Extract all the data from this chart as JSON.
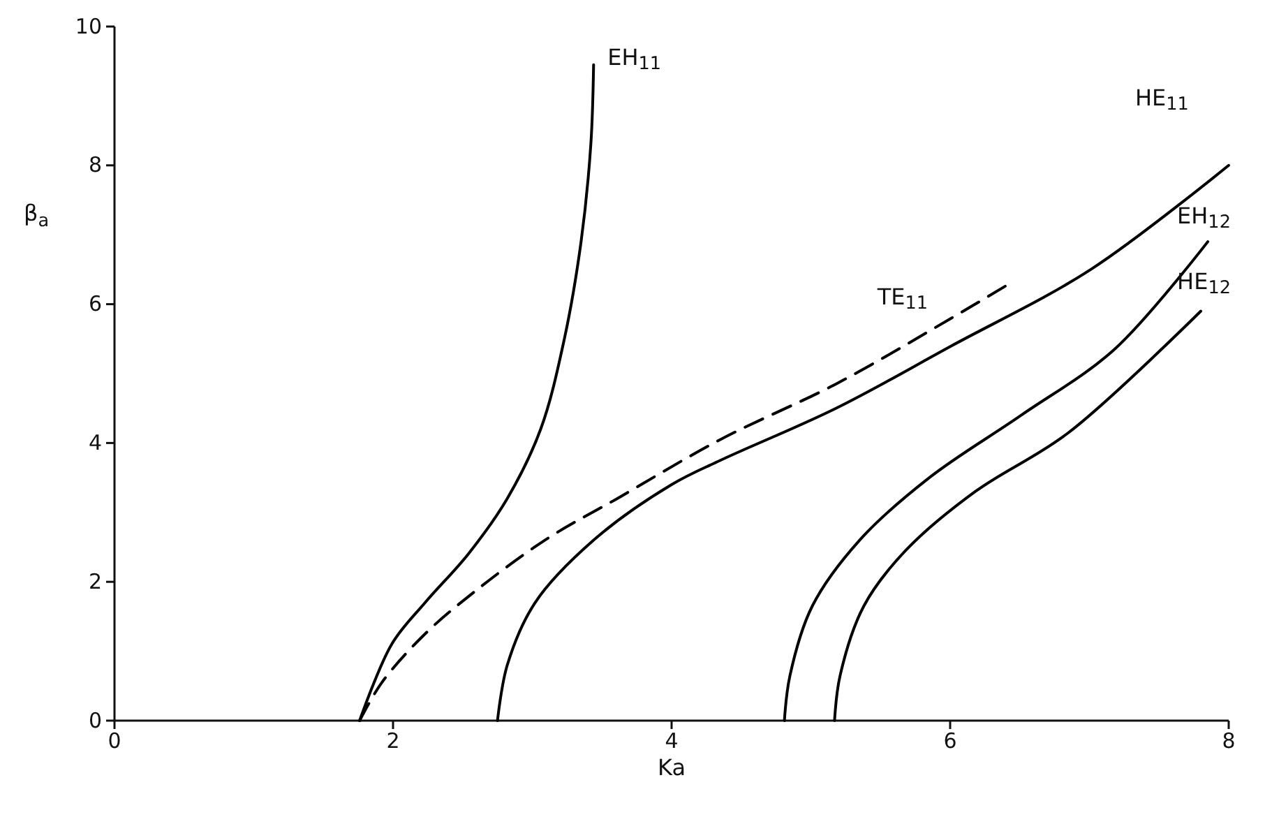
{
  "chart_data": {
    "type": "line",
    "xlabel": "Ka",
    "ylabel": "β$_{a}$",
    "xlim": [
      0,
      8
    ],
    "ylim": [
      0,
      10
    ],
    "xticks": [
      0,
      2,
      4,
      6,
      8
    ],
    "yticks": [
      0,
      2,
      4,
      6,
      8,
      10
    ],
    "grid": false,
    "marker": "none",
    "series": [
      {
        "name": "EH$_{11}$",
        "color": "#000000",
        "line_style": "solid",
        "x": [
          1.76,
          1.99,
          2.23,
          2.54,
          2.82,
          3.06,
          3.23,
          3.35,
          3.42,
          3.44
        ],
        "values": [
          0,
          1.1,
          1.7,
          2.4,
          3.2,
          4.2,
          5.5,
          6.9,
          8.3,
          9.45
        ]
      },
      {
        "name": "TE$_{11}$",
        "color": "#000000",
        "line_style": "dashed",
        "x": [
          1.76,
          1.92,
          2.23,
          2.58,
          3.09,
          3.61,
          4.35,
          5.18,
          6.01,
          6.43
        ],
        "values": [
          0,
          0.55,
          1.25,
          1.85,
          2.6,
          3.2,
          4.05,
          4.85,
          5.8,
          6.3
        ]
      },
      {
        "name": "HE$_{11}$",
        "color": "#000000",
        "line_style": "solid",
        "x": [
          2.75,
          2.82,
          3.02,
          3.44,
          4.0,
          4.35,
          5.18,
          6.01,
          7.01,
          8.0
        ],
        "values": [
          0,
          0.8,
          1.7,
          2.6,
          3.4,
          3.75,
          4.5,
          5.4,
          6.5,
          8.0
        ]
      },
      {
        "name": "EH$_{12}$",
        "color": "#000000",
        "line_style": "solid",
        "x": [
          4.81,
          4.85,
          5.01,
          5.35,
          5.85,
          6.51,
          7.18,
          7.85
        ],
        "values": [
          0,
          0.65,
          1.65,
          2.6,
          3.5,
          4.4,
          5.35,
          6.9
        ]
      },
      {
        "name": "HE$_{12}$",
        "color": "#000000",
        "line_style": "solid",
        "x": [
          5.17,
          5.21,
          5.38,
          5.68,
          6.18,
          6.85,
          7.8
        ],
        "values": [
          0,
          0.65,
          1.65,
          2.45,
          3.3,
          4.15,
          5.9
        ]
      }
    ]
  }
}
